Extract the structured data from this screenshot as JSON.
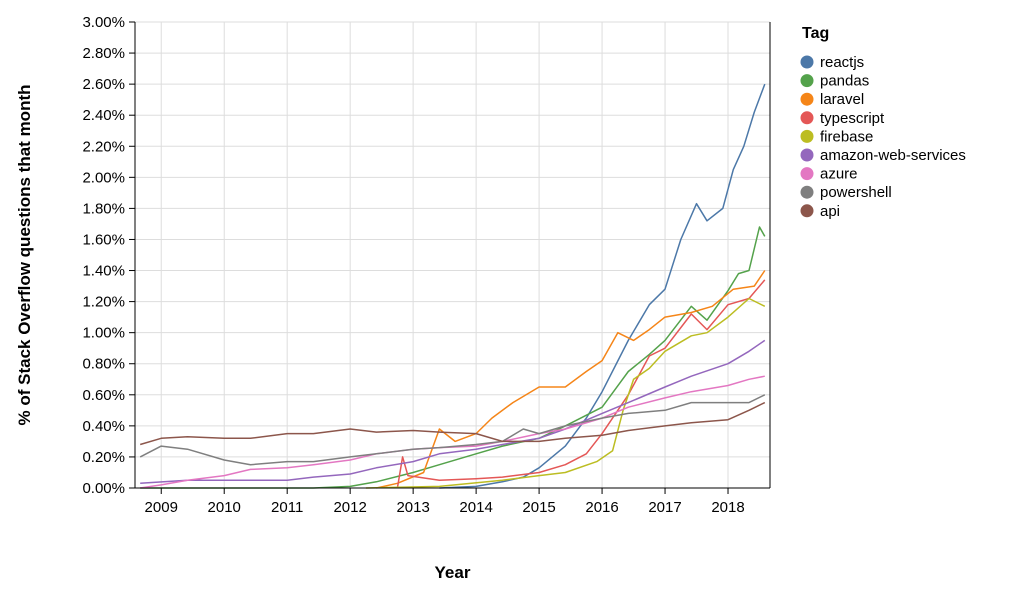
{
  "chart_data": {
    "type": "line",
    "xlabel": "Year",
    "ylabel": "% of Stack Overflow questions that month",
    "legend_title": "Tag",
    "legend_position": "right",
    "grid": true,
    "x_range": [
      "2008-08",
      "2018-09"
    ],
    "ylim": [
      0,
      3.0
    ],
    "y_ticks": [
      "0.00%",
      "0.20%",
      "0.40%",
      "0.60%",
      "0.80%",
      "1.00%",
      "1.20%",
      "1.40%",
      "1.60%",
      "1.80%",
      "2.00%",
      "2.20%",
      "2.40%",
      "2.60%",
      "2.80%",
      "3.00%"
    ],
    "x_ticks": [
      "2009",
      "2010",
      "2011",
      "2012",
      "2013",
      "2014",
      "2015",
      "2016",
      "2017",
      "2018"
    ],
    "series": [
      {
        "name": "reactjs",
        "color": "#4c78a8",
        "points": [
          [
            "2013-06",
            0.0
          ],
          [
            "2014-01",
            0.01
          ],
          [
            "2014-06",
            0.04
          ],
          [
            "2014-10",
            0.07
          ],
          [
            "2015-01",
            0.13
          ],
          [
            "2015-06",
            0.27
          ],
          [
            "2015-10",
            0.45
          ],
          [
            "2016-01",
            0.62
          ],
          [
            "2016-06",
            0.95
          ],
          [
            "2016-10",
            1.18
          ],
          [
            "2017-01",
            1.28
          ],
          [
            "2017-04",
            1.6
          ],
          [
            "2017-07",
            1.83
          ],
          [
            "2017-09",
            1.72
          ],
          [
            "2017-12",
            1.8
          ],
          [
            "2018-02",
            2.05
          ],
          [
            "2018-04",
            2.2
          ],
          [
            "2018-06",
            2.42
          ],
          [
            "2018-08",
            2.6
          ]
        ]
      },
      {
        "name": "pandas",
        "color": "#54a24b",
        "points": [
          [
            "2008-09",
            0.0
          ],
          [
            "2011-06",
            0.0
          ],
          [
            "2012-01",
            0.01
          ],
          [
            "2012-06",
            0.04
          ],
          [
            "2013-01",
            0.1
          ],
          [
            "2013-06",
            0.15
          ],
          [
            "2014-01",
            0.22
          ],
          [
            "2014-06",
            0.27
          ],
          [
            "2015-01",
            0.32
          ],
          [
            "2015-06",
            0.4
          ],
          [
            "2016-01",
            0.52
          ],
          [
            "2016-06",
            0.75
          ],
          [
            "2016-10",
            0.86
          ],
          [
            "2017-01",
            0.95
          ],
          [
            "2017-06",
            1.17
          ],
          [
            "2017-09",
            1.08
          ],
          [
            "2018-01",
            1.27
          ],
          [
            "2018-03",
            1.38
          ],
          [
            "2018-05",
            1.4
          ],
          [
            "2018-07",
            1.68
          ],
          [
            "2018-08",
            1.62
          ]
        ]
      },
      {
        "name": "laravel",
        "color": "#f58518",
        "points": [
          [
            "2012-06",
            0.0
          ],
          [
            "2012-10",
            0.03
          ],
          [
            "2013-03",
            0.1
          ],
          [
            "2013-06",
            0.38
          ],
          [
            "2013-09",
            0.3
          ],
          [
            "2014-01",
            0.35
          ],
          [
            "2014-04",
            0.45
          ],
          [
            "2014-08",
            0.55
          ],
          [
            "2015-01",
            0.65
          ],
          [
            "2015-06",
            0.65
          ],
          [
            "2015-10",
            0.75
          ],
          [
            "2016-01",
            0.82
          ],
          [
            "2016-04",
            1.0
          ],
          [
            "2016-07",
            0.95
          ],
          [
            "2016-10",
            1.02
          ],
          [
            "2017-01",
            1.1
          ],
          [
            "2017-06",
            1.13
          ],
          [
            "2017-10",
            1.17
          ],
          [
            "2018-02",
            1.28
          ],
          [
            "2018-06",
            1.3
          ],
          [
            "2018-08",
            1.4
          ]
        ]
      },
      {
        "name": "typescript",
        "color": "#e45756",
        "points": [
          [
            "2012-10",
            0.0
          ],
          [
            "2012-11",
            0.2
          ],
          [
            "2012-12",
            0.08
          ],
          [
            "2013-06",
            0.05
          ],
          [
            "2014-01",
            0.06
          ],
          [
            "2014-06",
            0.07
          ],
          [
            "2015-01",
            0.1
          ],
          [
            "2015-06",
            0.15
          ],
          [
            "2015-10",
            0.22
          ],
          [
            "2016-01",
            0.35
          ],
          [
            "2016-06",
            0.6
          ],
          [
            "2016-10",
            0.85
          ],
          [
            "2017-01",
            0.9
          ],
          [
            "2017-06",
            1.12
          ],
          [
            "2017-09",
            1.02
          ],
          [
            "2018-01",
            1.18
          ],
          [
            "2018-05",
            1.22
          ],
          [
            "2018-08",
            1.34
          ]
        ]
      },
      {
        "name": "firebase",
        "color": "#bcbd22",
        "points": [
          [
            "2012-04",
            0.0
          ],
          [
            "2013-06",
            0.01
          ],
          [
            "2014-06",
            0.05
          ],
          [
            "2015-01",
            0.08
          ],
          [
            "2015-06",
            0.1
          ],
          [
            "2015-12",
            0.17
          ],
          [
            "2016-03",
            0.24
          ],
          [
            "2016-05",
            0.5
          ],
          [
            "2016-07",
            0.7
          ],
          [
            "2016-10",
            0.77
          ],
          [
            "2017-01",
            0.88
          ],
          [
            "2017-06",
            0.98
          ],
          [
            "2017-09",
            1.0
          ],
          [
            "2018-01",
            1.1
          ],
          [
            "2018-05",
            1.22
          ],
          [
            "2018-08",
            1.17
          ]
        ]
      },
      {
        "name": "amazon-web-services",
        "color": "#9467bd",
        "points": [
          [
            "2008-09",
            0.03
          ],
          [
            "2009-06",
            0.05
          ],
          [
            "2010-01",
            0.05
          ],
          [
            "2010-06",
            0.05
          ],
          [
            "2011-01",
            0.05
          ],
          [
            "2011-06",
            0.07
          ],
          [
            "2012-01",
            0.09
          ],
          [
            "2012-06",
            0.13
          ],
          [
            "2013-01",
            0.17
          ],
          [
            "2013-06",
            0.22
          ],
          [
            "2014-01",
            0.25
          ],
          [
            "2014-06",
            0.28
          ],
          [
            "2015-01",
            0.32
          ],
          [
            "2015-06",
            0.38
          ],
          [
            "2016-01",
            0.48
          ],
          [
            "2016-06",
            0.55
          ],
          [
            "2017-01",
            0.65
          ],
          [
            "2017-06",
            0.72
          ],
          [
            "2018-01",
            0.8
          ],
          [
            "2018-05",
            0.88
          ],
          [
            "2018-08",
            0.95
          ]
        ]
      },
      {
        "name": "azure",
        "color": "#e377c2",
        "points": [
          [
            "2008-09",
            0.0
          ],
          [
            "2009-01",
            0.02
          ],
          [
            "2009-06",
            0.05
          ],
          [
            "2010-01",
            0.08
          ],
          [
            "2010-06",
            0.12
          ],
          [
            "2011-01",
            0.13
          ],
          [
            "2011-06",
            0.15
          ],
          [
            "2012-01",
            0.18
          ],
          [
            "2012-06",
            0.22
          ],
          [
            "2013-01",
            0.25
          ],
          [
            "2013-06",
            0.26
          ],
          [
            "2014-01",
            0.27
          ],
          [
            "2014-06",
            0.3
          ],
          [
            "2015-01",
            0.35
          ],
          [
            "2015-06",
            0.38
          ],
          [
            "2016-01",
            0.45
          ],
          [
            "2016-06",
            0.52
          ],
          [
            "2017-01",
            0.58
          ],
          [
            "2017-06",
            0.62
          ],
          [
            "2018-01",
            0.66
          ],
          [
            "2018-05",
            0.7
          ],
          [
            "2018-08",
            0.72
          ]
        ]
      },
      {
        "name": "powershell",
        "color": "#7f7f7f",
        "points": [
          [
            "2008-09",
            0.2
          ],
          [
            "2009-01",
            0.27
          ],
          [
            "2009-06",
            0.25
          ],
          [
            "2010-01",
            0.18
          ],
          [
            "2010-06",
            0.15
          ],
          [
            "2011-01",
            0.17
          ],
          [
            "2011-06",
            0.17
          ],
          [
            "2012-01",
            0.2
          ],
          [
            "2012-06",
            0.22
          ],
          [
            "2013-01",
            0.25
          ],
          [
            "2013-06",
            0.26
          ],
          [
            "2014-01",
            0.28
          ],
          [
            "2014-06",
            0.3
          ],
          [
            "2014-10",
            0.38
          ],
          [
            "2015-01",
            0.35
          ],
          [
            "2015-06",
            0.4
          ],
          [
            "2016-01",
            0.45
          ],
          [
            "2016-06",
            0.48
          ],
          [
            "2017-01",
            0.5
          ],
          [
            "2017-06",
            0.55
          ],
          [
            "2018-01",
            0.55
          ],
          [
            "2018-05",
            0.55
          ],
          [
            "2018-08",
            0.6
          ]
        ]
      },
      {
        "name": "api",
        "color": "#8c564b",
        "points": [
          [
            "2008-09",
            0.28
          ],
          [
            "2009-01",
            0.32
          ],
          [
            "2009-06",
            0.33
          ],
          [
            "2010-01",
            0.32
          ],
          [
            "2010-06",
            0.32
          ],
          [
            "2011-01",
            0.35
          ],
          [
            "2011-06",
            0.35
          ],
          [
            "2012-01",
            0.38
          ],
          [
            "2012-06",
            0.36
          ],
          [
            "2013-01",
            0.37
          ],
          [
            "2013-06",
            0.36
          ],
          [
            "2014-01",
            0.35
          ],
          [
            "2014-06",
            0.3
          ],
          [
            "2015-01",
            0.3
          ],
          [
            "2015-06",
            0.32
          ],
          [
            "2016-01",
            0.34
          ],
          [
            "2016-06",
            0.37
          ],
          [
            "2017-01",
            0.4
          ],
          [
            "2017-06",
            0.42
          ],
          [
            "2018-01",
            0.44
          ],
          [
            "2018-05",
            0.5
          ],
          [
            "2018-08",
            0.55
          ]
        ]
      }
    ]
  }
}
